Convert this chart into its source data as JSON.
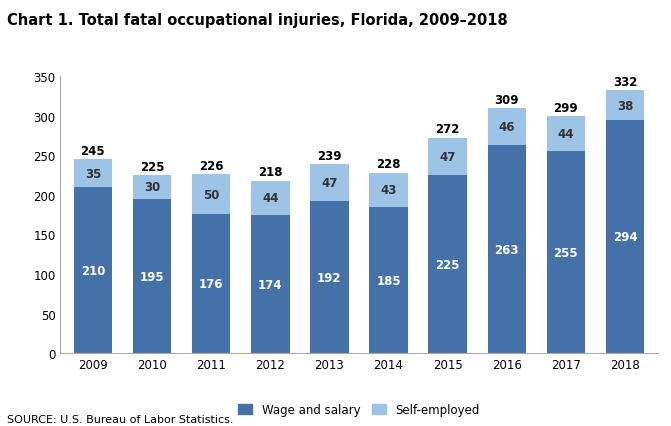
{
  "title": "Chart 1. Total fatal occupational injuries, Florida, 2009–2018",
  "years": [
    2009,
    2010,
    2011,
    2012,
    2013,
    2014,
    2015,
    2016,
    2017,
    2018
  ],
  "wage_salary": [
    210,
    195,
    176,
    174,
    192,
    185,
    225,
    263,
    255,
    294
  ],
  "self_employed": [
    35,
    30,
    50,
    44,
    47,
    43,
    47,
    46,
    44,
    38
  ],
  "totals": [
    245,
    225,
    226,
    218,
    239,
    228,
    272,
    309,
    299,
    332
  ],
  "wage_color": "#4472A8",
  "self_color": "#9DC3E6",
  "ylim": [
    0,
    350
  ],
  "yticks": [
    0,
    50,
    100,
    150,
    200,
    250,
    300,
    350
  ],
  "legend_wage": "Wage and salary",
  "legend_self": "Self-employed",
  "source": "SOURCE: U.S. Bureau of Labor Statistics.",
  "bar_width": 0.65,
  "title_fontsize": 10.5,
  "tick_fontsize": 8.5,
  "label_fontsize": 8.5,
  "total_fontsize": 8.5,
  "legend_fontsize": 8.5
}
